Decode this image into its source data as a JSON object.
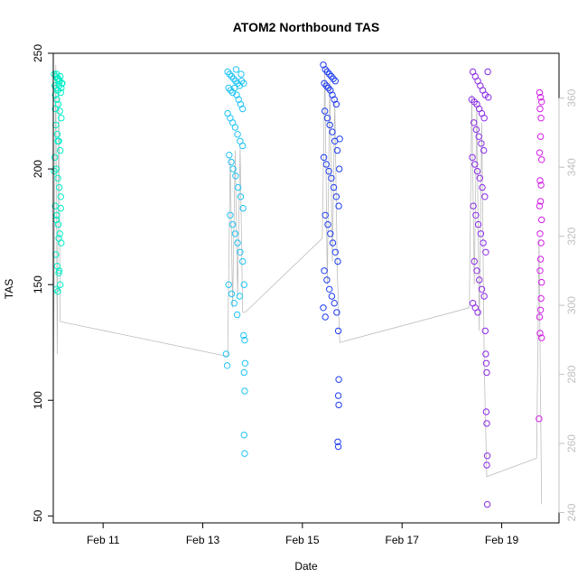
{
  "chart_data": {
    "type": "scatter",
    "title": "ATOM2 Northbound TAS",
    "xlabel": "Date",
    "ylabel": "TAS",
    "x_unit": "date (Feb 2013, fractional day)",
    "xlim": [
      10.0,
      20.15
    ],
    "ylim": [
      47,
      250
    ],
    "y_ticks": [
      50,
      100,
      150,
      200,
      250
    ],
    "x_ticks": [
      {
        "value": 11,
        "label": "Feb 11"
      },
      {
        "value": 13,
        "label": "Feb 13"
      },
      {
        "value": 15,
        "label": "Feb 15"
      },
      {
        "value": 17,
        "label": "Feb 17"
      },
      {
        "value": 19,
        "label": "Feb 19"
      }
    ],
    "y2lim": [
      237,
      373
    ],
    "y2_ticks": [
      240,
      260,
      280,
      300,
      320,
      340,
      360
    ],
    "y2_color": "#c0c0c0",
    "grid": false,
    "series": [
      {
        "color": "#00f0c8",
        "x_range": [
          10.0,
          10.2
        ],
        "points": [
          [
            10.02,
            241
          ],
          [
            10.05,
            240
          ],
          [
            10.08,
            239
          ],
          [
            10.11,
            238
          ],
          [
            10.14,
            240
          ],
          [
            10.17,
            237
          ],
          [
            10.03,
            236
          ],
          [
            10.06,
            235
          ],
          [
            10.09,
            234
          ],
          [
            10.12,
            236
          ],
          [
            10.15,
            233
          ],
          [
            10.04,
            232
          ],
          [
            10.07,
            230
          ],
          [
            10.1,
            228
          ],
          [
            10.13,
            225
          ],
          [
            10.16,
            222
          ],
          [
            10.05,
            219
          ],
          [
            10.08,
            215
          ],
          [
            10.11,
            212
          ],
          [
            10.14,
            208
          ],
          [
            10.03,
            205
          ],
          [
            10.06,
            200
          ],
          [
            10.09,
            196
          ],
          [
            10.12,
            192
          ],
          [
            10.15,
            188
          ],
          [
            10.04,
            184
          ],
          [
            10.07,
            180
          ],
          [
            10.1,
            176
          ],
          [
            10.13,
            172
          ],
          [
            10.16,
            168
          ],
          [
            10.05,
            163
          ],
          [
            10.08,
            158
          ],
          [
            10.11,
            155
          ],
          [
            10.14,
            150
          ],
          [
            10.06,
            148
          ],
          [
            10.09,
            147
          ],
          [
            10.12,
            156
          ],
          [
            10.15,
            183
          ],
          [
            10.02,
            199
          ],
          [
            10.18,
            237
          ],
          [
            10.1,
            239
          ],
          [
            10.07,
            241
          ],
          [
            10.13,
            238
          ],
          [
            10.16,
            235
          ],
          [
            10.04,
            226
          ],
          [
            10.09,
            212
          ],
          [
            10.11,
            170
          ],
          [
            10.06,
            178
          ]
        ]
      },
      {
        "color": "#20c4f4",
        "x_range": [
          13.45,
          13.85
        ],
        "points": [
          [
            13.5,
            242
          ],
          [
            13.54,
            241
          ],
          [
            13.58,
            240
          ],
          [
            13.62,
            239
          ],
          [
            13.66,
            238
          ],
          [
            13.7,
            237
          ],
          [
            13.74,
            236
          ],
          [
            13.78,
            238
          ],
          [
            13.82,
            237
          ],
          [
            13.52,
            235
          ],
          [
            13.56,
            234
          ],
          [
            13.6,
            233
          ],
          [
            13.64,
            235
          ],
          [
            13.68,
            232
          ],
          [
            13.72,
            230
          ],
          [
            13.76,
            228
          ],
          [
            13.8,
            226
          ],
          [
            13.5,
            224
          ],
          [
            13.55,
            222
          ],
          [
            13.6,
            220
          ],
          [
            13.65,
            218
          ],
          [
            13.7,
            215
          ],
          [
            13.75,
            212
          ],
          [
            13.8,
            210
          ],
          [
            13.53,
            206
          ],
          [
            13.57,
            203
          ],
          [
            13.61,
            200
          ],
          [
            13.66,
            197
          ],
          [
            13.71,
            192
          ],
          [
            13.76,
            188
          ],
          [
            13.81,
            183
          ],
          [
            13.55,
            180
          ],
          [
            13.6,
            176
          ],
          [
            13.65,
            172
          ],
          [
            13.7,
            168
          ],
          [
            13.75,
            164
          ],
          [
            13.8,
            160
          ],
          [
            13.52,
            150
          ],
          [
            13.58,
            146
          ],
          [
            13.63,
            142
          ],
          [
            13.69,
            137
          ],
          [
            13.74,
            145
          ],
          [
            13.83,
            150
          ],
          [
            13.47,
            120
          ],
          [
            13.49,
            115
          ],
          [
            13.82,
            128
          ],
          [
            13.84,
            126
          ],
          [
            13.83,
            112
          ],
          [
            13.84,
            104
          ],
          [
            13.83,
            85
          ],
          [
            13.84,
            77
          ],
          [
            13.85,
            116
          ],
          [
            13.67,
            243
          ],
          [
            13.77,
            241
          ]
        ]
      },
      {
        "color": "#1f3df0",
        "x_range": [
          15.4,
          15.75
        ],
        "points": [
          [
            15.42,
            245
          ],
          [
            15.46,
            243
          ],
          [
            15.5,
            242
          ],
          [
            15.54,
            241
          ],
          [
            15.58,
            240
          ],
          [
            15.62,
            239
          ],
          [
            15.66,
            238
          ],
          [
            15.44,
            237
          ],
          [
            15.48,
            236
          ],
          [
            15.52,
            235
          ],
          [
            15.56,
            234
          ],
          [
            15.6,
            232
          ],
          [
            15.64,
            230
          ],
          [
            15.68,
            228
          ],
          [
            15.45,
            225
          ],
          [
            15.5,
            222
          ],
          [
            15.55,
            219
          ],
          [
            15.6,
            216
          ],
          [
            15.65,
            212
          ],
          [
            15.7,
            208
          ],
          [
            15.43,
            205
          ],
          [
            15.48,
            202
          ],
          [
            15.53,
            199
          ],
          [
            15.58,
            196
          ],
          [
            15.63,
            192
          ],
          [
            15.68,
            188
          ],
          [
            15.73,
            184
          ],
          [
            15.46,
            180
          ],
          [
            15.51,
            176
          ],
          [
            15.56,
            172
          ],
          [
            15.61,
            168
          ],
          [
            15.66,
            164
          ],
          [
            15.71,
            160
          ],
          [
            15.44,
            156
          ],
          [
            15.49,
            152
          ],
          [
            15.54,
            148
          ],
          [
            15.59,
            145
          ],
          [
            15.64,
            142
          ],
          [
            15.42,
            140
          ],
          [
            15.46,
            136
          ],
          [
            15.69,
            138
          ],
          [
            15.72,
            130
          ],
          [
            15.73,
            109
          ],
          [
            15.72,
            102
          ],
          [
            15.73,
            98
          ],
          [
            15.71,
            82
          ],
          [
            15.72,
            80
          ],
          [
            15.74,
            200
          ],
          [
            15.75,
            213
          ]
        ]
      },
      {
        "color": "#8a2be8",
        "x_range": [
          18.35,
          18.75
        ],
        "points": [
          [
            18.42,
            242
          ],
          [
            18.47,
            240
          ],
          [
            18.52,
            238
          ],
          [
            18.57,
            236
          ],
          [
            18.62,
            234
          ],
          [
            18.67,
            232
          ],
          [
            18.4,
            230
          ],
          [
            18.45,
            229
          ],
          [
            18.5,
            228
          ],
          [
            18.55,
            226
          ],
          [
            18.6,
            224
          ],
          [
            18.65,
            222
          ],
          [
            18.44,
            220
          ],
          [
            18.49,
            217
          ],
          [
            18.54,
            214
          ],
          [
            18.59,
            211
          ],
          [
            18.64,
            208
          ],
          [
            18.41,
            205
          ],
          [
            18.46,
            202
          ],
          [
            18.51,
            199
          ],
          [
            18.56,
            196
          ],
          [
            18.61,
            192
          ],
          [
            18.66,
            188
          ],
          [
            18.43,
            184
          ],
          [
            18.48,
            180
          ],
          [
            18.53,
            176
          ],
          [
            18.58,
            172
          ],
          [
            18.63,
            168
          ],
          [
            18.68,
            164
          ],
          [
            18.45,
            160
          ],
          [
            18.5,
            156
          ],
          [
            18.55,
            152
          ],
          [
            18.6,
            148
          ],
          [
            18.65,
            145
          ],
          [
            18.42,
            142
          ],
          [
            18.47,
            140
          ],
          [
            18.52,
            138
          ],
          [
            18.67,
            130
          ],
          [
            18.68,
            120
          ],
          [
            18.69,
            116
          ],
          [
            18.7,
            112
          ],
          [
            18.69,
            95
          ],
          [
            18.7,
            90
          ],
          [
            18.71,
            76
          ],
          [
            18.7,
            72
          ],
          [
            18.71,
            55
          ],
          [
            18.72,
            242
          ],
          [
            18.73,
            231
          ]
        ]
      },
      {
        "color": "#d21ee6",
        "x_range": [
          19.7,
          19.85
        ],
        "points": [
          [
            19.76,
            233
          ],
          [
            19.78,
            231
          ],
          [
            19.8,
            229
          ],
          [
            19.77,
            226
          ],
          [
            19.79,
            222
          ],
          [
            19.78,
            214
          ],
          [
            19.76,
            207
          ],
          [
            19.8,
            204
          ],
          [
            19.77,
            195
          ],
          [
            19.79,
            193
          ],
          [
            19.78,
            186
          ],
          [
            19.76,
            184
          ],
          [
            19.8,
            178
          ],
          [
            19.77,
            172
          ],
          [
            19.79,
            168
          ],
          [
            19.78,
            161
          ],
          [
            19.77,
            156
          ],
          [
            19.8,
            151
          ],
          [
            19.79,
            144
          ],
          [
            19.78,
            139
          ],
          [
            19.76,
            136
          ],
          [
            19.77,
            129
          ],
          [
            19.8,
            127
          ],
          [
            19.75,
            92
          ]
        ]
      }
    ],
    "trace": {
      "color": "#bdbdbd",
      "points": [
        [
          10.0,
          108
        ],
        [
          10.05,
          245
        ],
        [
          10.08,
          120
        ],
        [
          10.11,
          236
        ],
        [
          10.14,
          134
        ],
        [
          13.5,
          119
        ],
        [
          13.55,
          205
        ],
        [
          13.6,
          140
        ],
        [
          13.65,
          208
        ],
        [
          13.7,
          145
        ],
        [
          13.75,
          209
        ],
        [
          13.8,
          138
        ],
        [
          13.85,
          138
        ],
        [
          15.4,
          170
        ],
        [
          15.45,
          244
        ],
        [
          15.5,
          150
        ],
        [
          15.55,
          238
        ],
        [
          15.6,
          160
        ],
        [
          15.65,
          230
        ],
        [
          15.7,
          155
        ],
        [
          15.75,
          125
        ],
        [
          18.35,
          140
        ],
        [
          18.4,
          232
        ],
        [
          18.45,
          150
        ],
        [
          18.5,
          228
        ],
        [
          18.55,
          130
        ],
        [
          18.6,
          220
        ],
        [
          18.65,
          115
        ],
        [
          18.7,
          67
        ],
        [
          19.7,
          75
        ],
        [
          19.75,
          170
        ],
        [
          19.8,
          55
        ]
      ]
    }
  }
}
